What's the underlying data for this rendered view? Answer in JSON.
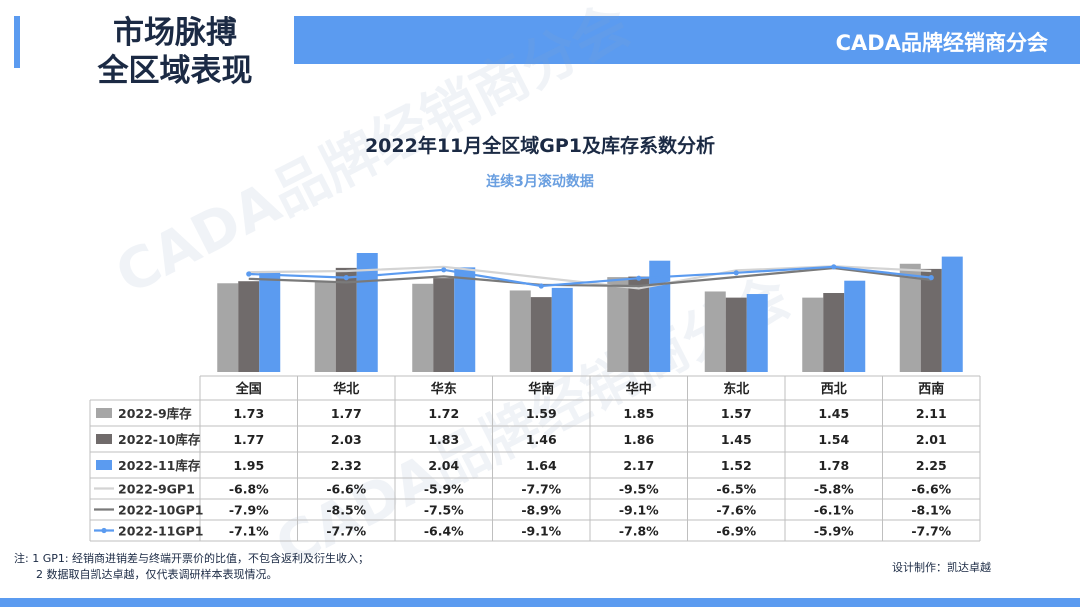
{
  "header": {
    "title_line1": "市场脉搏",
    "title_line2": "全区域表现",
    "brand": "CADA品牌经销商分会",
    "accent_color": "#5b9bf0"
  },
  "watermark_text": "CADA品牌经销商分会",
  "chart_data": {
    "type": "bar",
    "title": "2022年11月全区域GP1及库存系数分析",
    "subtitle": "连续3月滚动数据",
    "categories": [
      "全国",
      "华北",
      "华东",
      "华南",
      "华中",
      "东北",
      "西北",
      "西南"
    ],
    "bar_series": [
      {
        "name": "2022-9库存",
        "values": [
          1.73,
          1.77,
          1.72,
          1.59,
          1.85,
          1.57,
          1.45,
          2.11
        ],
        "labels": [
          "1.73",
          "1.77",
          "1.72",
          "1.59",
          "1.85",
          "1.57",
          "1.45",
          "2.11"
        ],
        "color": "#a6a6a6"
      },
      {
        "name": "2022-10库存",
        "values": [
          1.77,
          2.03,
          1.83,
          1.46,
          1.86,
          1.45,
          1.54,
          2.01
        ],
        "labels": [
          "1.77",
          "2.03",
          "1.83",
          "1.46",
          "1.86",
          "1.45",
          "1.54",
          "2.01"
        ],
        "color": "#706b6b"
      },
      {
        "name": "2022-11库存",
        "values": [
          1.95,
          2.32,
          2.04,
          1.64,
          2.17,
          1.52,
          1.78,
          2.25
        ],
        "labels": [
          "1.95",
          "2.32",
          "2.04",
          "1.64",
          "2.17",
          "1.52",
          "1.78",
          "2.25"
        ],
        "color": "#5b9bf0"
      }
    ],
    "line_series": [
      {
        "name": "2022-9GP1",
        "values": [
          -6.8,
          -6.6,
          -5.9,
          -7.7,
          -9.5,
          -6.5,
          -5.8,
          -6.6
        ],
        "labels": [
          "-6.8%",
          "-6.6%",
          "-5.9%",
          "-7.7%",
          "-9.5%",
          "-6.5%",
          "-5.8%",
          "-6.6%"
        ],
        "color": "#d4d4d4",
        "marker": false
      },
      {
        "name": "2022-10GP1",
        "values": [
          -7.9,
          -8.5,
          -7.5,
          -8.9,
          -9.1,
          -7.6,
          -6.1,
          -8.1
        ],
        "labels": [
          "-7.9%",
          "-8.5%",
          "-7.5%",
          "-8.9%",
          "-9.1%",
          "-7.6%",
          "-6.1%",
          "-8.1%"
        ],
        "color": "#7a7a7a",
        "marker": false
      },
      {
        "name": "2022-11GP1",
        "values": [
          -7.1,
          -7.7,
          -6.4,
          -9.1,
          -7.8,
          -6.9,
          -5.9,
          -7.7
        ],
        "labels": [
          "-7.1%",
          "-7.7%",
          "-6.4%",
          "-9.1%",
          "-7.8%",
          "-6.9%",
          "-5.9%",
          "-7.7%"
        ],
        "color": "#5b9bf0",
        "marker": true
      }
    ],
    "has_data_table": true,
    "grid": false
  },
  "notes": {
    "line1": "注: 1 GP1: 经销商进销差与终端开票价的比值，不包含返利及衍生收入；",
    "line2": "2 数据取自凯达卓越，仅代表调研样本表现情况。"
  },
  "credit": "设计制作：凯达卓越"
}
